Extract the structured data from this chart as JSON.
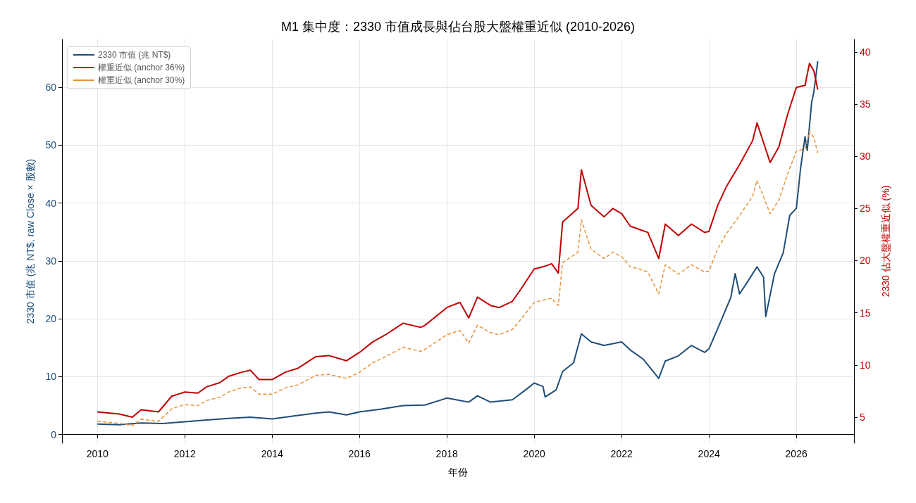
{
  "chart_data": {
    "type": "line",
    "title": "M1 集中度：2330 市值成長與佔台股大盤權重近似 (2010-2026)",
    "xlabel": "年份",
    "ylabel": "2330 市值 (兆 NT$, raw Close × 股數)",
    "y2label": "2330 佔大盤權重近似 (%)",
    "xlim": [
      2009.19,
      2027.32
    ],
    "xticks": [
      2010,
      2012,
      2014,
      2016,
      2018,
      2020,
      2022,
      2024,
      2026
    ],
    "ylim": [
      -1.5,
      68.3
    ],
    "yticks": [
      0,
      10,
      20,
      30,
      40,
      50,
      60
    ],
    "y2lim": [
      2.5,
      41.2
    ],
    "y2ticks": [
      5,
      10,
      15,
      20,
      25,
      30,
      35,
      40
    ],
    "grid": true,
    "legend": "top left",
    "marker": "none",
    "series": [
      {
        "name": "2330 市值 (兆 NT$)",
        "color": "#1f4e79",
        "line_style": "solid",
        "x": [
          2010.0,
          2010.5,
          2011.0,
          2011.5,
          2012.0,
          2012.5,
          2013.0,
          2013.5,
          2014.0,
          2014.5,
          2015.0,
          2015.3,
          2015.7,
          2016.0,
          2016.5,
          2017.0,
          2017.5,
          2018.0,
          2018.3,
          2018.5,
          2018.7,
          2019.0,
          2019.5,
          2019.8,
          2020.0,
          2020.2,
          2020.25,
          2020.5,
          2020.65,
          2020.9,
          2021.08,
          2021.3,
          2021.6,
          2022.0,
          2022.2,
          2022.5,
          2022.85,
          2023.0,
          2023.3,
          2023.6,
          2023.9,
          2024.0,
          2024.2,
          2024.5,
          2024.6,
          2024.7,
          2024.9,
          2025.1,
          2025.25,
          2025.3,
          2025.5,
          2025.7,
          2025.85,
          2026.0,
          2026.1,
          2026.2,
          2026.25,
          2026.35,
          2026.4,
          2026.45,
          2026.49
        ],
        "values": [
          1.8,
          1.7,
          2.0,
          1.9,
          2.2,
          2.5,
          2.8,
          3.0,
          2.7,
          3.2,
          3.7,
          3.9,
          3.4,
          3.9,
          4.4,
          5.0,
          5.1,
          6.3,
          5.9,
          5.6,
          6.7,
          5.6,
          6.0,
          7.7,
          8.9,
          8.3,
          6.5,
          7.7,
          10.9,
          12.4,
          17.4,
          16.0,
          15.4,
          16.0,
          14.6,
          13.0,
          9.7,
          12.7,
          13.6,
          15.4,
          14.2,
          14.8,
          18.3,
          23.7,
          27.8,
          24.3,
          26.6,
          29.0,
          27.2,
          20.4,
          27.8,
          31.4,
          37.9,
          39.1,
          46.2,
          51.5,
          49.1,
          57.4,
          59.2,
          62.1,
          64.5
        ]
      },
      {
        "name": "權重近似 (anchor 36%)",
        "color": "#c00000",
        "line_style": "solid",
        "axis": "y2",
        "x": [
          2010.0,
          2010.5,
          2010.8,
          2011.0,
          2011.4,
          2011.7,
          2012.0,
          2012.3,
          2012.5,
          2012.8,
          2013.0,
          2013.3,
          2013.5,
          2013.7,
          2014.0,
          2014.3,
          2014.6,
          2015.0,
          2015.3,
          2015.7,
          2016.0,
          2016.3,
          2016.6,
          2017.0,
          2017.4,
          2017.5,
          2018.0,
          2018.3,
          2018.5,
          2018.7,
          2019.0,
          2019.2,
          2019.5,
          2019.7,
          2020.0,
          2020.2,
          2020.4,
          2020.55,
          2020.65,
          2021.0,
          2021.08,
          2021.3,
          2021.6,
          2021.8,
          2022.0,
          2022.2,
          2022.4,
          2022.6,
          2022.85,
          2023.0,
          2023.3,
          2023.6,
          2023.9,
          2024.0,
          2024.2,
          2024.4,
          2024.7,
          2025.0,
          2025.1,
          2025.4,
          2025.6,
          2025.8,
          2026.0,
          2026.2,
          2026.3,
          2026.4,
          2026.49
        ],
        "values": [
          5.5,
          5.3,
          5.0,
          5.7,
          5.5,
          7.0,
          7.4,
          7.3,
          7.9,
          8.3,
          8.9,
          9.3,
          9.5,
          8.6,
          8.6,
          9.3,
          9.7,
          10.8,
          10.9,
          10.4,
          11.2,
          12.2,
          12.9,
          14.0,
          13.6,
          13.8,
          15.5,
          16.0,
          14.5,
          16.5,
          15.7,
          15.5,
          16.1,
          17.3,
          19.2,
          19.4,
          19.7,
          18.8,
          23.7,
          25.0,
          28.7,
          25.3,
          24.2,
          25.0,
          24.5,
          23.3,
          23.0,
          22.7,
          20.2,
          23.5,
          22.4,
          23.5,
          22.7,
          22.8,
          25.3,
          27.1,
          29.2,
          31.5,
          33.2,
          29.4,
          30.9,
          34.0,
          36.6,
          36.8,
          38.9,
          38.2,
          36.4
        ]
      },
      {
        "name": "權重近似 (anchor 30%)",
        "color": "#e8923a",
        "line_style": "dashed",
        "axis": "y2",
        "x": [
          2010.0,
          2010.5,
          2010.8,
          2011.0,
          2011.4,
          2011.7,
          2012.0,
          2012.3,
          2012.5,
          2012.8,
          2013.0,
          2013.3,
          2013.5,
          2013.7,
          2014.0,
          2014.3,
          2014.6,
          2015.0,
          2015.3,
          2015.7,
          2016.0,
          2016.3,
          2016.6,
          2017.0,
          2017.4,
          2017.5,
          2018.0,
          2018.3,
          2018.5,
          2018.7,
          2019.0,
          2019.2,
          2019.5,
          2019.7,
          2020.0,
          2020.2,
          2020.4,
          2020.55,
          2020.65,
          2021.0,
          2021.08,
          2021.3,
          2021.6,
          2021.8,
          2022.0,
          2022.2,
          2022.4,
          2022.6,
          2022.85,
          2023.0,
          2023.3,
          2023.6,
          2023.9,
          2024.0,
          2024.2,
          2024.4,
          2024.7,
          2025.0,
          2025.1,
          2025.4,
          2025.6,
          2025.8,
          2026.0,
          2026.2,
          2026.3,
          2026.4,
          2026.49
        ],
        "values": [
          4.6,
          4.4,
          4.2,
          4.8,
          4.6,
          5.8,
          6.2,
          6.1,
          6.6,
          6.9,
          7.4,
          7.8,
          7.9,
          7.2,
          7.2,
          7.8,
          8.1,
          9.0,
          9.1,
          8.7,
          9.3,
          10.2,
          10.8,
          11.7,
          11.3,
          11.5,
          12.9,
          13.3,
          12.1,
          13.8,
          13.1,
          12.9,
          13.4,
          14.4,
          16.0,
          16.2,
          16.4,
          15.7,
          19.8,
          20.8,
          23.9,
          21.1,
          20.2,
          20.8,
          20.4,
          19.4,
          19.2,
          18.9,
          16.8,
          19.6,
          18.7,
          19.6,
          18.9,
          19.0,
          21.1,
          22.6,
          24.3,
          26.2,
          27.7,
          24.5,
          25.8,
          28.3,
          30.5,
          30.7,
          32.4,
          31.8,
          30.3
        ]
      }
    ]
  }
}
